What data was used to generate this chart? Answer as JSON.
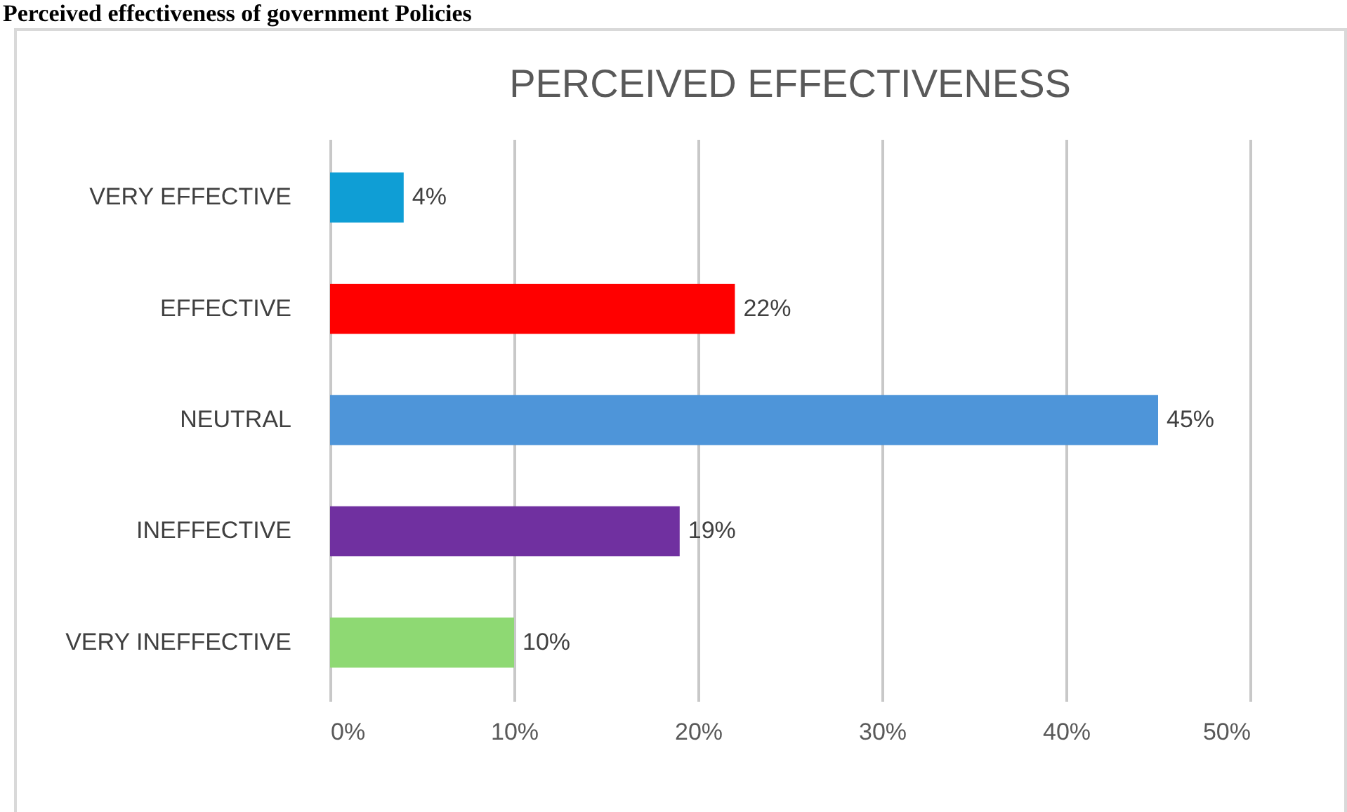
{
  "chart_data": {
    "type": "bar",
    "orientation": "horizontal",
    "title": "PERCEIVED EFFECTIVENESS",
    "annotations": [
      "Perceived effectiveness of government Policies"
    ],
    "categories": [
      "VERY EFFECTIVE",
      "EFFECTIVE",
      "NEUTRAL",
      "INEFFECTIVE",
      "VERY INEFFECTIVE"
    ],
    "values": [
      4,
      22,
      45,
      19,
      10
    ],
    "colors": [
      "#0f9ed5",
      "#ff0000",
      "#4e95d9",
      "#7030a0",
      "#8ed973"
    ],
    "value_labels": [
      "4%",
      "22%",
      "45%",
      "19%",
      "10%"
    ],
    "xlim": [
      0,
      50
    ],
    "xticks": [
      {
        "value": 0,
        "label": "0%"
      },
      {
        "value": 10,
        "label": "10%"
      },
      {
        "value": 20,
        "label": "20%"
      },
      {
        "value": 30,
        "label": "30%"
      },
      {
        "value": 40,
        "label": "40%"
      },
      {
        "value": 50,
        "label": "50%"
      }
    ],
    "grid": "x"
  }
}
